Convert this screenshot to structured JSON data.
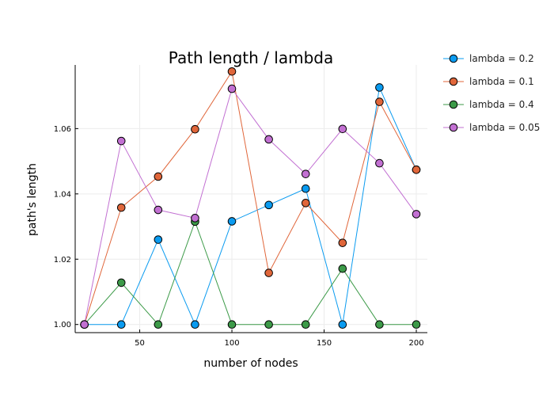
{
  "chart_data": {
    "type": "line",
    "title": "Path length / lambda",
    "xlabel": "number of nodes",
    "ylabel": "path's length",
    "x": [
      20,
      40,
      60,
      80,
      100,
      120,
      140,
      160,
      180,
      200
    ],
    "xlim": [
      15,
      206
    ],
    "ylim": [
      0.9975,
      1.0795
    ],
    "xticks": [
      50,
      100,
      150,
      200
    ],
    "xtick_labels": [
      "50",
      "100",
      "150",
      "200"
    ],
    "yticks": [
      1.0,
      1.02,
      1.04,
      1.06
    ],
    "ytick_labels": [
      "1.00",
      "1.02",
      "1.04",
      "1.06"
    ],
    "grid": true,
    "legend_position": "outside-right",
    "series": [
      {
        "name": "lambda = 0.2",
        "color": "#0a9bf0",
        "values": [
          1.0,
          1.0,
          1.026,
          1.0,
          1.0316,
          1.0366,
          1.0416,
          1.0,
          1.0726,
          1.0474
        ]
      },
      {
        "name": "lambda = 0.1",
        "color": "#e0663a",
        "values": [
          1.0,
          1.0358,
          1.0453,
          1.0598,
          1.0775,
          1.0158,
          1.0372,
          1.025,
          1.0682,
          1.0474
        ]
      },
      {
        "name": "lambda = 0.4",
        "color": "#3c9a48",
        "values": [
          1.0,
          1.0128,
          1.0,
          1.0315,
          1.0,
          1.0,
          1.0,
          1.0171,
          1.0,
          1.0
        ]
      },
      {
        "name": "lambda = 0.05",
        "color": "#c270d2",
        "values": [
          1.0,
          1.0562,
          1.0351,
          1.0326,
          1.0722,
          1.0567,
          1.0461,
          1.0599,
          1.0494,
          1.0338
        ]
      }
    ]
  }
}
